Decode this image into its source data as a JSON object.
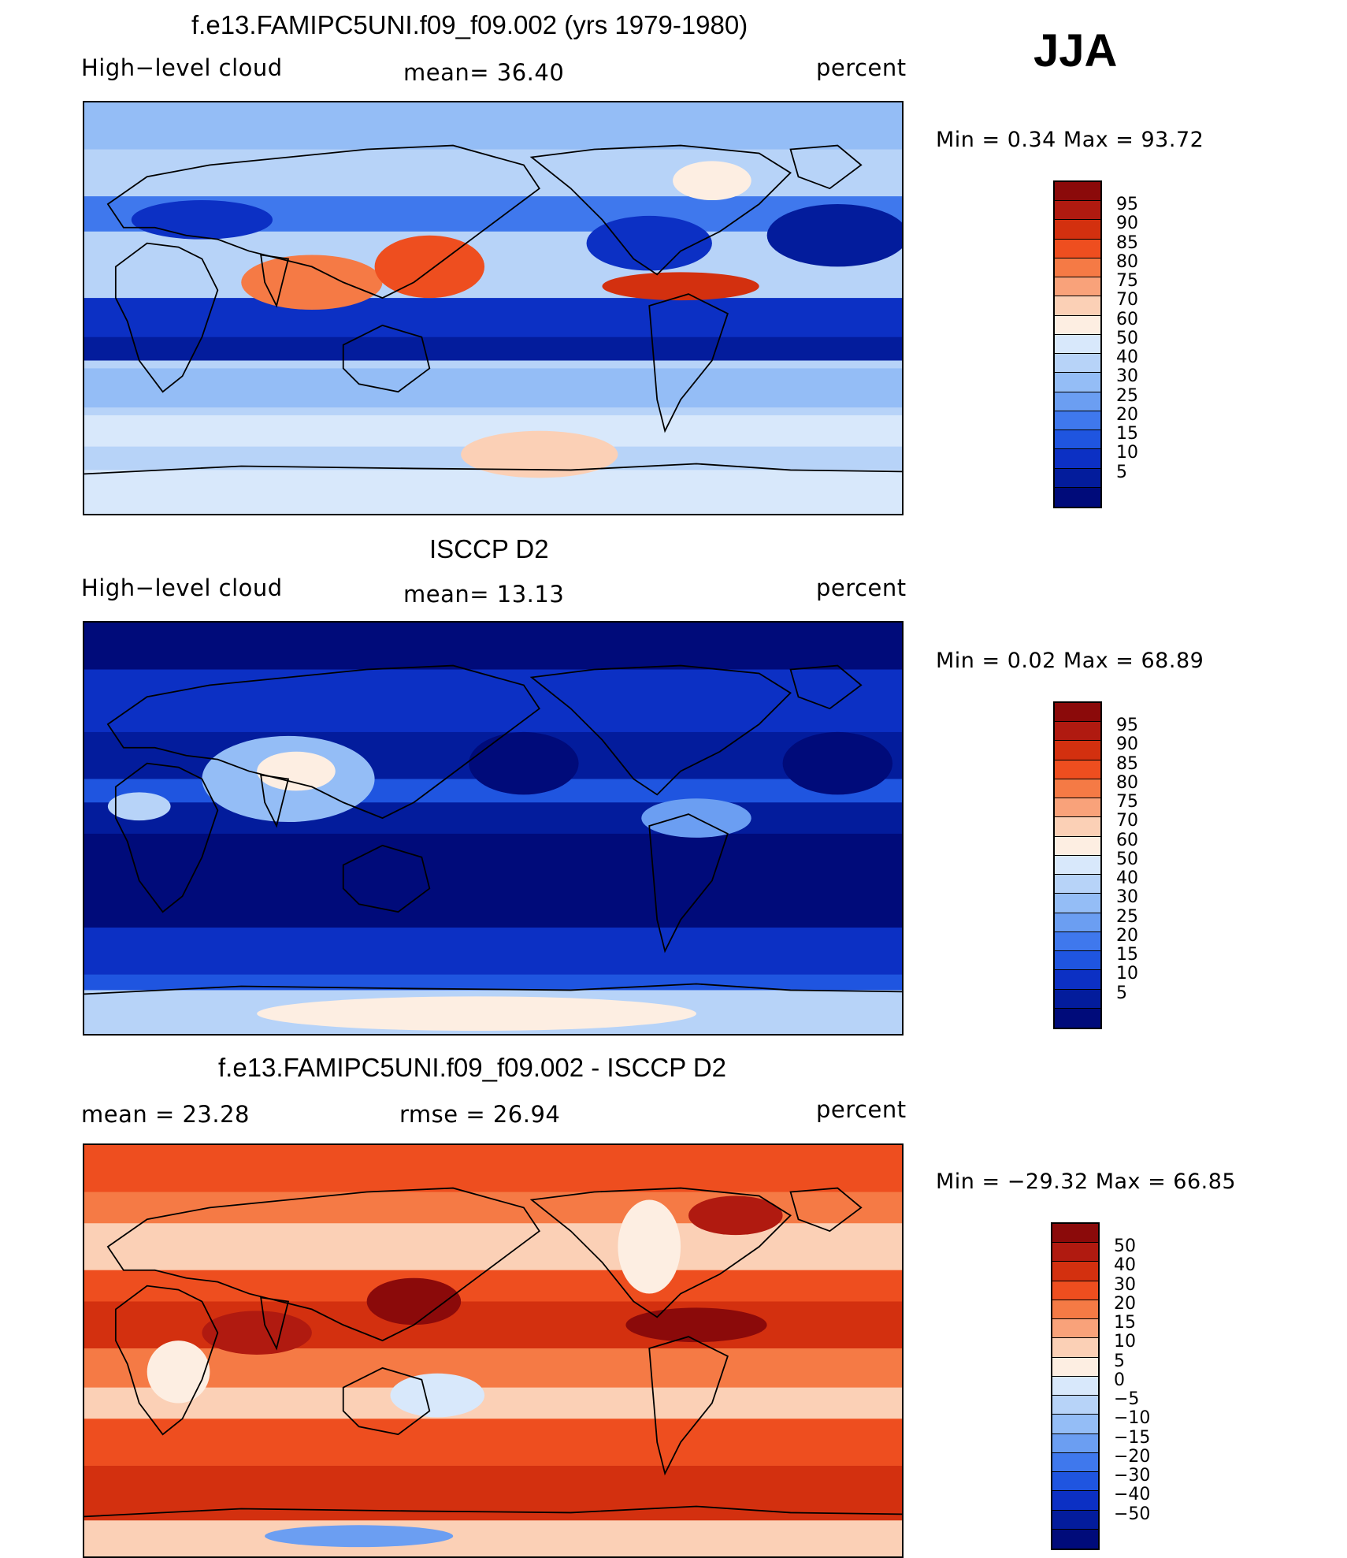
{
  "season_label": "JJA",
  "panels": [
    {
      "title": "f.e13.FAMIPC5UNI.f09_f09.002 (yrs 1979-1980)",
      "left_label": "High−level cloud",
      "center_label": "mean=   36.40",
      "right_label": "percent",
      "minmax": "Min  =     0.34  Max  =     93.72",
      "colorbar": {
        "colors": [
          "#8b0a0a",
          "#b01a10",
          "#d3300f",
          "#ee4e1f",
          "#f57a45",
          "#f9a27a",
          "#fbd0b6",
          "#fdeee2",
          "#d8e8fb",
          "#b7d3f8",
          "#94bdf6",
          "#6b9ef2",
          "#3f78ed",
          "#1f55e0",
          "#0c30c4",
          "#031c9c",
          "#000b7a"
        ],
        "labels": [
          "95",
          "90",
          "85",
          "80",
          "75",
          "70",
          "60",
          "50",
          "40",
          "30",
          "25",
          "20",
          "15",
          "10",
          "5"
        ]
      },
      "map_style": "model"
    },
    {
      "title": "ISCCP D2",
      "left_label": "High−level cloud",
      "center_label": "mean=   13.13",
      "right_label": "percent",
      "minmax": "Min  =     0.02  Max  =     68.89",
      "colorbar": {
        "colors": [
          "#8b0a0a",
          "#b01a10",
          "#d3300f",
          "#ee4e1f",
          "#f57a45",
          "#f9a27a",
          "#fbd0b6",
          "#fdeee2",
          "#d8e8fb",
          "#b7d3f8",
          "#94bdf6",
          "#6b9ef2",
          "#3f78ed",
          "#1f55e0",
          "#0c30c4",
          "#031c9c",
          "#000b7a"
        ],
        "labels": [
          "95",
          "90",
          "85",
          "80",
          "75",
          "70",
          "60",
          "50",
          "40",
          "30",
          "25",
          "20",
          "15",
          "10",
          "5"
        ]
      },
      "map_style": "obs"
    },
    {
      "title": "f.e13.FAMIPC5UNI.f09_f09.002 - ISCCP D2",
      "left_label": "mean  =     23.28",
      "center_label": "rmse  =     26.94",
      "right_label": "percent",
      "minmax": "Min  = −29.32  Max  =     66.85",
      "colorbar": {
        "colors": [
          "#8b0a0a",
          "#b01a10",
          "#d3300f",
          "#ee4e1f",
          "#f57a45",
          "#f9a27a",
          "#fbd0b6",
          "#fdeee2",
          "#d8e8fb",
          "#b7d3f8",
          "#94bdf6",
          "#6b9ef2",
          "#3f78ed",
          "#1f55e0",
          "#0c30c4",
          "#031c9c",
          "#000b7a"
        ],
        "labels": [
          "50",
          "40",
          "30",
          "20",
          "15",
          "10",
          "5",
          "0",
          "−5",
          "−10",
          "−15",
          "−20",
          "−30",
          "−40",
          "−50"
        ]
      },
      "map_style": "diff"
    }
  ]
}
